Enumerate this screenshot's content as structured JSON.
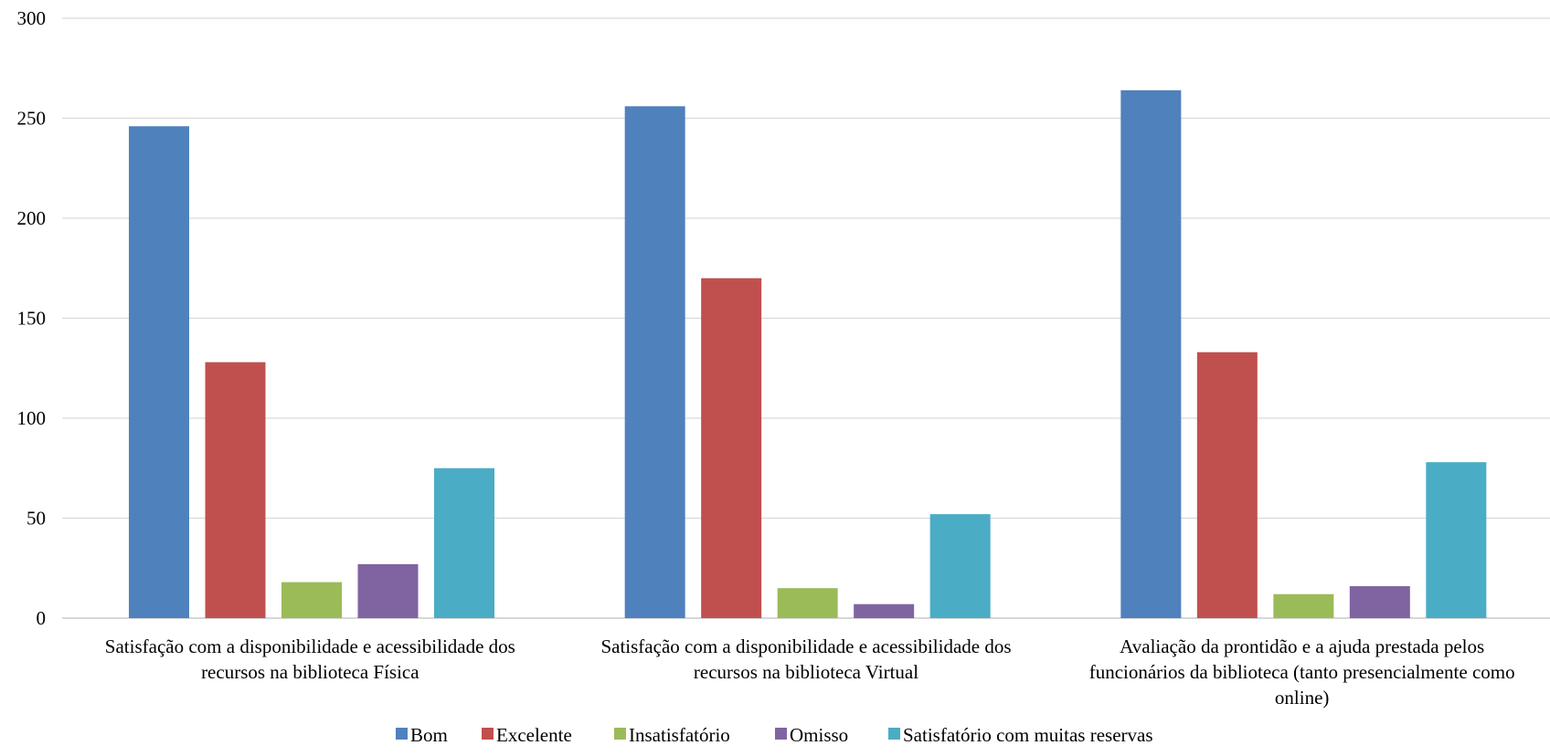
{
  "chart_data": {
    "type": "bar",
    "title": "",
    "xlabel": "",
    "ylabel": "",
    "ylim": [
      0,
      300
    ],
    "yticks": [
      0,
      50,
      100,
      150,
      200,
      250,
      300
    ],
    "grid": true,
    "legend_position": "bottom",
    "categories": [
      "Satisfação com a disponibilidade e acessibilidade dos recursos na biblioteca Física",
      "Satisfação com a disponibilidade e acessibilidade dos recursos na biblioteca Virtual",
      "Avaliação da prontidão e a ajuda prestada pelos funcionários da biblioteca (tanto presencialmente como online)"
    ],
    "category_label_lines": [
      [
        "Satisfação com a disponibilidade e acessibilidade dos",
        "recursos na biblioteca Física"
      ],
      [
        "Satisfação com a disponibilidade e acessibilidade dos",
        "recursos na biblioteca Virtual"
      ],
      [
        "Avaliação da prontidão e a ajuda prestada pelos",
        "funcionários da biblioteca (tanto presencialmente como",
        "online)"
      ]
    ],
    "series": [
      {
        "name": "Bom",
        "color": "#4F81BD",
        "values": [
          246,
          256,
          264
        ]
      },
      {
        "name": "Excelente",
        "color": "#C0504D",
        "values": [
          128,
          170,
          133
        ]
      },
      {
        "name": "Insatisfatório",
        "color": "#9BBB59",
        "values": [
          18,
          15,
          12
        ]
      },
      {
        "name": "Omisso",
        "color": "#8064A2",
        "values": [
          27,
          7,
          16
        ]
      },
      {
        "name": "Satisfatório com muitas reservas",
        "color": "#4BACC6",
        "values": [
          75,
          52,
          78
        ]
      }
    ]
  }
}
